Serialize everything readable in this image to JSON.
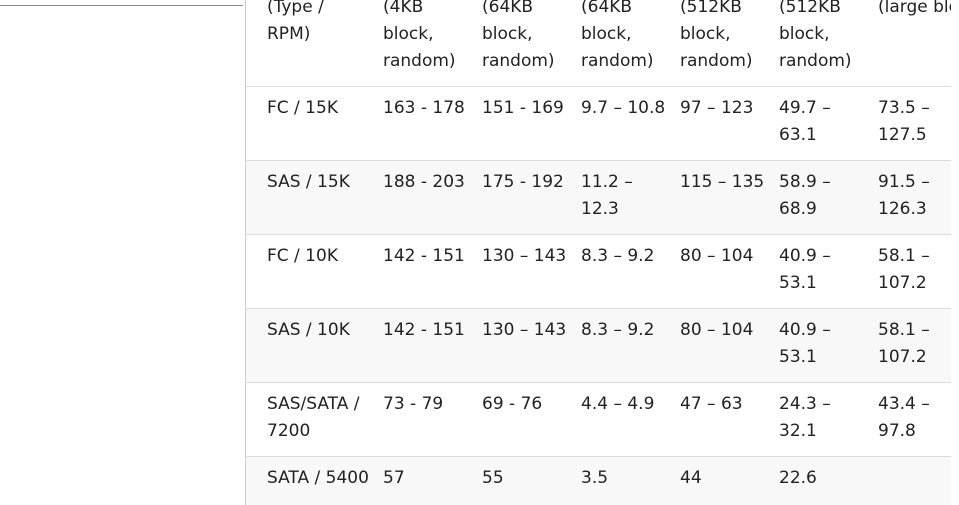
{
  "table": {
    "header": [
      "(Type / RPM)",
      "(4KB block, random)",
      "(64KB block, random)",
      "(64KB block, random)",
      "(512KB block, random)",
      "(512KB block, random)",
      "(large block, sequenti"
    ],
    "rows": [
      [
        "FC / 15K",
        "163 - 178",
        "151 - 169",
        "9.7 – 10.8",
        "97 – 123",
        "49.7 – 63.1",
        "73.5 – 127.5"
      ],
      [
        "SAS / 15K",
        "188 - 203",
        "175 - 192",
        "11.2 – 12.3",
        "115 – 135",
        "58.9 – 68.9",
        "91.5 – 126.3"
      ],
      [
        "FC / 10K",
        "142 - 151",
        "130 – 143",
        "8.3 – 9.2",
        "80 – 104",
        "40.9 – 53.1",
        "58.1 – 107.2"
      ],
      [
        "SAS / 10K",
        "142 - 151",
        "130 – 143",
        "8.3 – 9.2",
        "80 – 104",
        "40.9 – 53.1",
        "58.1 – 107.2"
      ],
      [
        "SAS/SATA / 7200",
        "73 - 79",
        "69 - 76",
        "4.4 – 4.9",
        "47 – 63",
        "24.3 – 32.1",
        "43.4 – 97.8"
      ],
      [
        "SATA / 5400",
        "57",
        "55",
        "3.5",
        "44",
        "22.6"
      ]
    ]
  }
}
